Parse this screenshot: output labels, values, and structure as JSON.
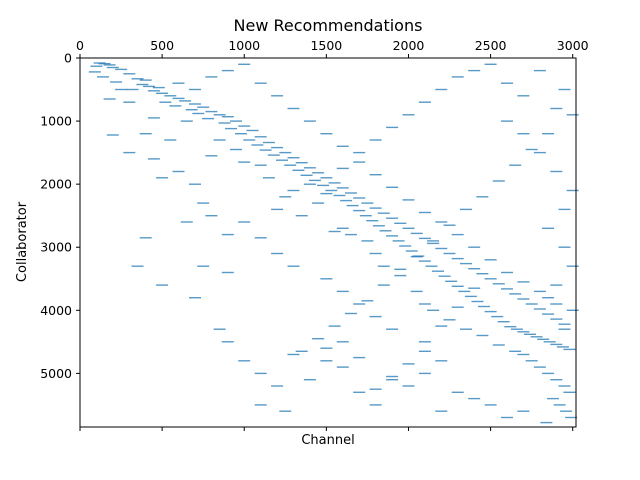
{
  "chart_data": {
    "type": "scatter",
    "title": "New Recommendations",
    "xlabel": "Channel",
    "ylabel": "Collaborator",
    "xlim": [
      0,
      3020
    ],
    "ylim": [
      5850,
      0
    ],
    "x_ticks_top": [
      0,
      500,
      1000,
      1500,
      2000,
      2500,
      3000
    ],
    "x_tick_labels_top": [
      "0",
      "500",
      "1000",
      "1500",
      "2000",
      "2500",
      "3000"
    ],
    "x_ticks_bottom": [
      0,
      500,
      1000,
      1500,
      2000,
      2500,
      3000
    ],
    "y_ticks": [
      0,
      1000,
      2000,
      3000,
      4000,
      5000
    ],
    "y_tick_labels": [
      "0",
      "1000",
      "2000",
      "3000",
      "4000",
      "5000"
    ],
    "marker": "horizontal-dash",
    "marker_color": "#1f77b4",
    "grid": false,
    "legend": "none",
    "points": [
      [
        120,
        80
      ],
      [
        150,
        90
      ],
      [
        180,
        110
      ],
      [
        100,
        130
      ],
      [
        200,
        150
      ],
      [
        250,
        180
      ],
      [
        90,
        220
      ],
      [
        300,
        250
      ],
      [
        140,
        300
      ],
      [
        350,
        330
      ],
      [
        400,
        350
      ],
      [
        220,
        380
      ],
      [
        380,
        420
      ],
      [
        420,
        450
      ],
      [
        480,
        470
      ],
      [
        320,
        500
      ],
      [
        450,
        520
      ],
      [
        500,
        560
      ],
      [
        550,
        600
      ],
      [
        600,
        640
      ],
      [
        640,
        680
      ],
      [
        520,
        700
      ],
      [
        700,
        730
      ],
      [
        580,
        760
      ],
      [
        750,
        780
      ],
      [
        680,
        820
      ],
      [
        800,
        850
      ],
      [
        720,
        880
      ],
      [
        850,
        900
      ],
      [
        900,
        930
      ],
      [
        780,
        960
      ],
      [
        950,
        1000
      ],
      [
        880,
        1030
      ],
      [
        1000,
        1080
      ],
      [
        920,
        1120
      ],
      [
        1050,
        1150
      ],
      [
        980,
        1200
      ],
      [
        1100,
        1250
      ],
      [
        1030,
        1300
      ],
      [
        1150,
        1340
      ],
      [
        1080,
        1380
      ],
      [
        1200,
        1420
      ],
      [
        1130,
        1460
      ],
      [
        1250,
        1500
      ],
      [
        1180,
        1540
      ],
      [
        1300,
        1580
      ],
      [
        1230,
        1620
      ],
      [
        1350,
        1660
      ],
      [
        1280,
        1700
      ],
      [
        1400,
        1740
      ],
      [
        1330,
        1780
      ],
      [
        1450,
        1820
      ],
      [
        1380,
        1860
      ],
      [
        1500,
        1900
      ],
      [
        1430,
        1940
      ],
      [
        1550,
        1980
      ],
      [
        1480,
        2020
      ],
      [
        1600,
        2060
      ],
      [
        1530,
        2100
      ],
      [
        1650,
        2140
      ],
      [
        1580,
        2180
      ],
      [
        1700,
        2220
      ],
      [
        1620,
        2260
      ],
      [
        1750,
        2300
      ],
      [
        1660,
        2340
      ],
      [
        1800,
        2380
      ],
      [
        1700,
        2420
      ],
      [
        1850,
        2460
      ],
      [
        1740,
        2500
      ],
      [
        1900,
        2540
      ],
      [
        1780,
        2580
      ],
      [
        1950,
        2620
      ],
      [
        1820,
        2660
      ],
      [
        2000,
        2700
      ],
      [
        1860,
        2740
      ],
      [
        2050,
        2780
      ],
      [
        1900,
        2820
      ],
      [
        2100,
        2860
      ],
      [
        1940,
        2900
      ],
      [
        2150,
        2940
      ],
      [
        1980,
        2980
      ],
      [
        2200,
        3020
      ],
      [
        2020,
        3060
      ],
      [
        2250,
        3100
      ],
      [
        2060,
        3140
      ],
      [
        2300,
        3180
      ],
      [
        2100,
        3220
      ],
      [
        2350,
        3260
      ],
      [
        2140,
        3300
      ],
      [
        2400,
        3340
      ],
      [
        2180,
        3380
      ],
      [
        2450,
        3420
      ],
      [
        2220,
        3460
      ],
      [
        2500,
        3500
      ],
      [
        2260,
        3540
      ],
      [
        2550,
        3580
      ],
      [
        2300,
        3620
      ],
      [
        2600,
        3660
      ],
      [
        2340,
        3700
      ],
      [
        2650,
        3740
      ],
      [
        2380,
        3780
      ],
      [
        2700,
        3820
      ],
      [
        2420,
        3860
      ],
      [
        2750,
        3900
      ],
      [
        2460,
        3940
      ],
      [
        2800,
        3980
      ],
      [
        2500,
        4020
      ],
      [
        2850,
        4060
      ],
      [
        2540,
        4100
      ],
      [
        2900,
        4140
      ],
      [
        2580,
        4180
      ],
      [
        2950,
        4220
      ],
      [
        2620,
        4260
      ],
      [
        2660,
        4300
      ],
      [
        2700,
        4340
      ],
      [
        2740,
        4380
      ],
      [
        2780,
        4420
      ],
      [
        2820,
        4460
      ],
      [
        2860,
        4500
      ],
      [
        2900,
        4540
      ],
      [
        2940,
        4580
      ],
      [
        2980,
        4620
      ],
      [
        2700,
        4700
      ],
      [
        2750,
        4800
      ],
      [
        2800,
        4900
      ],
      [
        2850,
        5000
      ],
      [
        2900,
        5100
      ],
      [
        2950,
        5200
      ],
      [
        2980,
        5300
      ],
      [
        2880,
        5400
      ],
      [
        2920,
        5500
      ],
      [
        2960,
        5600
      ],
      [
        2990,
        5700
      ],
      [
        2840,
        5780
      ],
      [
        400,
        1200
      ],
      [
        300,
        1500
      ],
      [
        200,
        1220
      ],
      [
        450,
        1600
      ],
      [
        600,
        1800
      ],
      [
        500,
        1900
      ],
      [
        700,
        2000
      ],
      [
        750,
        2300
      ],
      [
        800,
        2500
      ],
      [
        900,
        2800
      ],
      [
        650,
        2600
      ],
      [
        400,
        2850
      ],
      [
        350,
        3300
      ],
      [
        500,
        3600
      ],
      [
        750,
        3300
      ],
      [
        900,
        3400
      ],
      [
        700,
        3800
      ],
      [
        850,
        4300
      ],
      [
        900,
        4500
      ],
      [
        1000,
        4800
      ],
      [
        1100,
        5000
      ],
      [
        1200,
        5200
      ],
      [
        1100,
        5500
      ],
      [
        1250,
        5600
      ],
      [
        1300,
        4700
      ],
      [
        1400,
        5100
      ],
      [
        1500,
        4600
      ],
      [
        1600,
        4900
      ],
      [
        1700,
        5300
      ],
      [
        1800,
        5500
      ],
      [
        1900,
        5100
      ],
      [
        2000,
        5200
      ],
      [
        2100,
        5000
      ],
      [
        2200,
        5600
      ],
      [
        2300,
        5300
      ],
      [
        2400,
        5400
      ],
      [
        2500,
        5500
      ],
      [
        2600,
        5700
      ],
      [
        2700,
        5600
      ],
      [
        2200,
        4800
      ],
      [
        2100,
        4500
      ],
      [
        1900,
        4300
      ],
      [
        1800,
        4100
      ],
      [
        1700,
        3900
      ],
      [
        1600,
        3700
      ],
      [
        1500,
        3500
      ],
      [
        1300,
        3300
      ],
      [
        1200,
        3100
      ],
      [
        1100,
        2850
      ],
      [
        1000,
        2600
      ],
      [
        1200,
        2400
      ],
      [
        1300,
        2100
      ],
      [
        1400,
        2000
      ],
      [
        1600,
        1750
      ],
      [
        1700,
        1500
      ],
      [
        1800,
        1300
      ],
      [
        1900,
        1100
      ],
      [
        2000,
        900
      ],
      [
        2100,
        700
      ],
      [
        2200,
        500
      ],
      [
        2300,
        300
      ],
      [
        2400,
        200
      ],
      [
        2500,
        100
      ],
      [
        2600,
        400
      ],
      [
        2700,
        600
      ],
      [
        2800,
        200
      ],
      [
        2900,
        800
      ],
      [
        3000,
        900
      ],
      [
        2950,
        500
      ],
      [
        2850,
        1200
      ],
      [
        2750,
        1450
      ],
      [
        2650,
        1700
      ],
      [
        2550,
        1950
      ],
      [
        2450,
        2200
      ],
      [
        2350,
        2400
      ],
      [
        2250,
        2650
      ],
      [
        2150,
        2900
      ],
      [
        2050,
        3150
      ],
      [
        1950,
        3350
      ],
      [
        1850,
        3600
      ],
      [
        1750,
        3850
      ],
      [
        1650,
        4050
      ],
      [
        1550,
        4250
      ],
      [
        1450,
        4450
      ],
      [
        1350,
        4650
      ],
      [
        2600,
        1000
      ],
      [
        2700,
        1200
      ],
      [
        2800,
        1500
      ],
      [
        2900,
        1800
      ],
      [
        3000,
        2100
      ],
      [
        2950,
        2400
      ],
      [
        2850,
        2700
      ],
      [
        2950,
        3000
      ],
      [
        3000,
        3300
      ],
      [
        2900,
        3600
      ],
      [
        2850,
        3800
      ],
      [
        3000,
        4000
      ],
      [
        2950,
        4300
      ],
      [
        1600,
        2700
      ],
      [
        1650,
        2800
      ],
      [
        1550,
        2750
      ],
      [
        1750,
        2900
      ],
      [
        1800,
        3100
      ],
      [
        1850,
        3300
      ],
      [
        1950,
        3450
      ],
      [
        2050,
        3700
      ],
      [
        2100,
        3900
      ],
      [
        2150,
        4000
      ],
      [
        2250,
        4150
      ],
      [
        2350,
        4300
      ],
      [
        2450,
        4400
      ],
      [
        2550,
        4550
      ],
      [
        2650,
        4650
      ],
      [
        1100,
        1700
      ],
      [
        1150,
        1900
      ],
      [
        1250,
        2200
      ],
      [
        1350,
        2500
      ],
      [
        1450,
        2300
      ],
      [
        1500,
        2150
      ],
      [
        950,
        1450
      ],
      [
        1000,
        1650
      ],
      [
        850,
        1300
      ],
      [
        800,
        1550
      ],
      [
        650,
        1000
      ],
      [
        550,
        1300
      ],
      [
        450,
        950
      ],
      [
        300,
        700
      ],
      [
        250,
        500
      ],
      [
        180,
        650
      ],
      [
        600,
        400
      ],
      [
        700,
        500
      ],
      [
        800,
        300
      ],
      [
        900,
        200
      ],
      [
        1000,
        100
      ],
      [
        1100,
        400
      ],
      [
        1200,
        600
      ],
      [
        1300,
        800
      ],
      [
        1400,
        1000
      ],
      [
        1500,
        1200
      ],
      [
        1600,
        1400
      ],
      [
        1700,
        1650
      ],
      [
        1800,
        1850
      ],
      [
        1900,
        2050
      ],
      [
        2000,
        2250
      ],
      [
        2100,
        2450
      ],
      [
        2200,
        2600
      ],
      [
        2300,
        2800
      ],
      [
        2400,
        3000
      ],
      [
        2500,
        3200
      ],
      [
        2600,
        3400
      ],
      [
        2700,
        3550
      ],
      [
        2800,
        3700
      ],
      [
        2900,
        3900
      ],
      [
        2400,
        3650
      ],
      [
        2300,
        3950
      ],
      [
        2200,
        4250
      ],
      [
        2100,
        4650
      ],
      [
        2000,
        4850
      ],
      [
        1900,
        5050
      ],
      [
        1800,
        5250
      ],
      [
        1700,
        4750
      ],
      [
        1600,
        4500
      ],
      [
        1500,
        4800
      ]
    ]
  }
}
